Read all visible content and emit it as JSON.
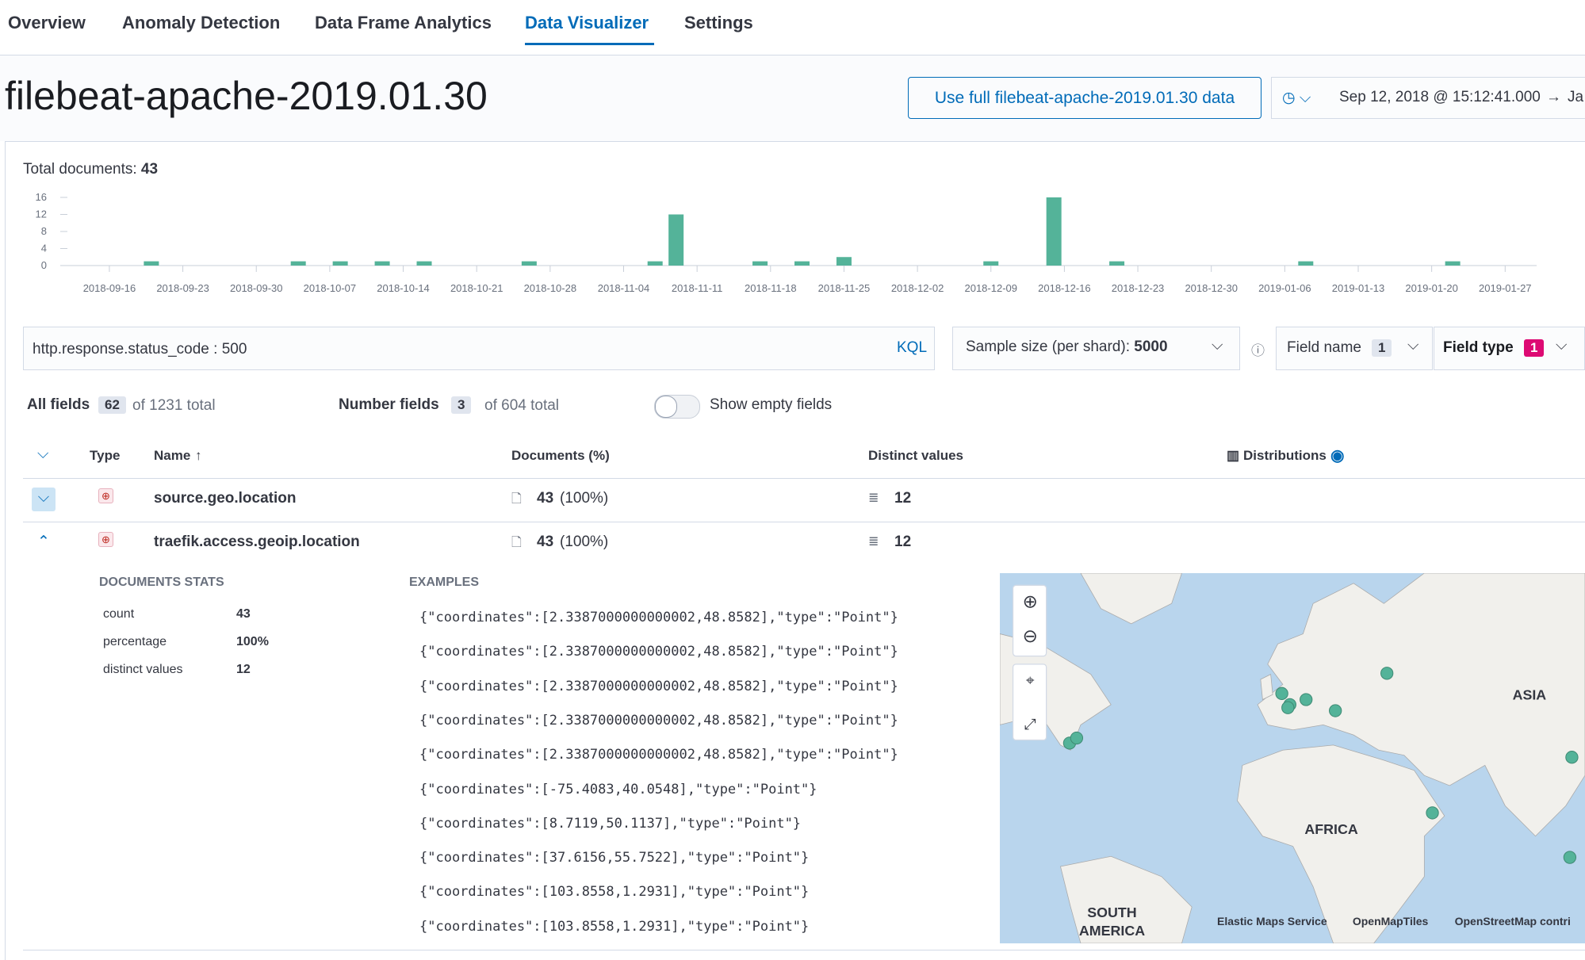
{
  "tabs": [
    "Overview",
    "Anomaly Detection",
    "Data Frame Analytics",
    "Data Visualizer",
    "Settings"
  ],
  "header": {
    "title": "filebeat-apache-2019.01.30",
    "button": "Use full filebeat-apache-2019.01.30 data",
    "date_start": "Sep 12, 2018 @ 15:12:41.000",
    "date_end": "Ja"
  },
  "chart_data": {
    "type": "bar",
    "title": "Total documents:",
    "total": 43,
    "color": "#54b399",
    "x": [
      "2018-09-20",
      "2018-10-04",
      "2018-10-08",
      "2018-10-12",
      "2018-10-16",
      "2018-10-26",
      "2018-11-07",
      "2018-11-09",
      "2018-11-17",
      "2018-11-21",
      "2018-11-25",
      "2018-12-09",
      "2018-12-15",
      "2018-12-21",
      "2019-01-08",
      "2019-01-22"
    ],
    "values": [
      1,
      1,
      1,
      1,
      1,
      1,
      1,
      12,
      1,
      1,
      2,
      1,
      16,
      1,
      1,
      1
    ],
    "xlim": [
      "2018-09-12",
      "2019-01-30"
    ],
    "xticks": [
      "2018-09-16",
      "2018-09-23",
      "2018-09-30",
      "2018-10-07",
      "2018-10-14",
      "2018-10-21",
      "2018-10-28",
      "2018-11-04",
      "2018-11-11",
      "2018-11-18",
      "2018-11-25",
      "2018-12-02",
      "2018-12-09",
      "2018-12-16",
      "2018-12-23",
      "2018-12-30",
      "2019-01-06",
      "2019-01-13",
      "2019-01-20",
      "2019-01-27"
    ],
    "ylim": [
      0,
      16
    ],
    "yticks": [
      0,
      4,
      8,
      12,
      16
    ]
  },
  "query": {
    "text": "http.response.status_code : 500",
    "language": "KQL"
  },
  "sample": {
    "label": "Sample size (per shard):",
    "value": 5000
  },
  "filters": {
    "field_name": "Field name",
    "field_name_count": 1,
    "field_type": "Field type",
    "field_type_count": 1
  },
  "stats": {
    "all_label": "All fields",
    "all_count": 62,
    "all_total": "of 1231 total",
    "number_label": "Number fields",
    "number_count": 3,
    "number_total": "of 604 total",
    "empty_toggle": "Show empty fields"
  },
  "table": {
    "headers": [
      "Type",
      "Name",
      "Documents (%)",
      "Distinct values",
      "Distributions"
    ],
    "rows": [
      {
        "name": "source.geo.location",
        "docs": 43,
        "pct": "(100%)",
        "distinct": 12
      },
      {
        "name": "traefik.access.geoip.location",
        "docs": 43,
        "pct": "(100%)",
        "distinct": 12
      }
    ]
  },
  "details": {
    "stats_title": "DOCUMENTS STATS",
    "stats": [
      [
        "count",
        43
      ],
      [
        "percentage",
        "100%"
      ],
      [
        "distinct values",
        12
      ]
    ],
    "examples_title": "EXAMPLES",
    "examples": [
      "{\"coordinates\":[2.3387000000000002,48.8582],\"type\":\"Point\"}",
      "{\"coordinates\":[2.3387000000000002,48.8582],\"type\":\"Point\"}",
      "{\"coordinates\":[2.3387000000000002,48.8582],\"type\":\"Point\"}",
      "{\"coordinates\":[2.3387000000000002,48.8582],\"type\":\"Point\"}",
      "{\"coordinates\":[2.3387000000000002,48.8582],\"type\":\"Point\"}",
      "{\"coordinates\":[-75.4083,40.0548],\"type\":\"Point\"}",
      "{\"coordinates\":[8.7119,50.1137],\"type\":\"Point\"}",
      "{\"coordinates\":[37.6156,55.7522],\"type\":\"Point\"}",
      "{\"coordinates\":[103.8558,1.2931],\"type\":\"Point\"}",
      "{\"coordinates\":[103.8558,1.2931],\"type\":\"Point\"}"
    ]
  },
  "map": {
    "labels": [
      "ASIA",
      "AFRICA",
      "SOUTH",
      "AMERICA"
    ],
    "attribution": [
      "Elastic Maps Service",
      "OpenMapTiles",
      "OpenStreetMap contri"
    ]
  }
}
